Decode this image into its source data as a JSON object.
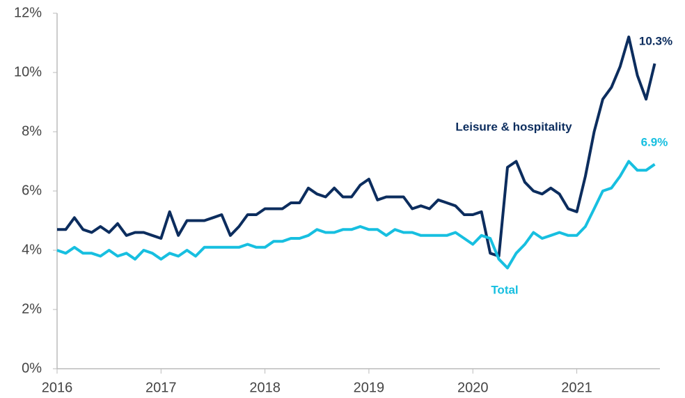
{
  "chart_data": {
    "type": "line",
    "x": [
      2016,
      2016.083,
      2016.167,
      2016.25,
      2016.333,
      2016.417,
      2016.5,
      2016.583,
      2016.667,
      2016.75,
      2016.833,
      2016.917,
      2017,
      2017.083,
      2017.167,
      2017.25,
      2017.333,
      2017.417,
      2017.5,
      2017.583,
      2017.667,
      2017.75,
      2017.833,
      2017.917,
      2018,
      2018.083,
      2018.167,
      2018.25,
      2018.333,
      2018.417,
      2018.5,
      2018.583,
      2018.667,
      2018.75,
      2018.833,
      2018.917,
      2019,
      2019.083,
      2019.167,
      2019.25,
      2019.333,
      2019.417,
      2019.5,
      2019.583,
      2019.667,
      2019.75,
      2019.833,
      2019.917,
      2020,
      2020.083,
      2020.167,
      2020.25,
      2020.333,
      2020.417,
      2020.5,
      2020.583,
      2020.667,
      2020.75,
      2020.833,
      2020.917,
      2021,
      2021.083,
      2021.167,
      2021.25,
      2021.333,
      2021.417,
      2021.5,
      2021.583,
      2021.667,
      2021.75
    ],
    "series": [
      {
        "name": "Leisure & hospitality",
        "color": "#0c2d5e",
        "end_label": "10.3%",
        "values": [
          4.7,
          4.7,
          5.1,
          4.7,
          4.6,
          4.8,
          4.6,
          4.9,
          4.5,
          4.6,
          4.6,
          4.5,
          4.4,
          5.3,
          4.5,
          5.0,
          5.0,
          5.0,
          5.1,
          5.2,
          4.5,
          4.8,
          5.2,
          5.2,
          5.4,
          5.4,
          5.4,
          5.6,
          5.6,
          6.1,
          5.9,
          5.8,
          6.1,
          5.8,
          5.8,
          6.2,
          6.4,
          5.7,
          5.8,
          5.8,
          5.8,
          5.4,
          5.5,
          5.4,
          5.7,
          5.6,
          5.5,
          5.2,
          5.2,
          5.3,
          3.9,
          3.8,
          6.8,
          7.0,
          6.3,
          6.0,
          5.9,
          6.1,
          5.9,
          5.4,
          5.3,
          6.5,
          8.0,
          9.1,
          9.5,
          10.2,
          11.2,
          9.9,
          9.1,
          10.3
        ]
      },
      {
        "name": "Total",
        "color": "#17bfe0",
        "end_label": "6.9%",
        "values": [
          4.0,
          3.9,
          4.1,
          3.9,
          3.9,
          3.8,
          4.0,
          3.8,
          3.9,
          3.7,
          4.0,
          3.9,
          3.7,
          3.9,
          3.8,
          4.0,
          3.8,
          4.1,
          4.1,
          4.1,
          4.1,
          4.1,
          4.2,
          4.1,
          4.1,
          4.3,
          4.3,
          4.4,
          4.4,
          4.5,
          4.7,
          4.6,
          4.6,
          4.7,
          4.7,
          4.8,
          4.7,
          4.7,
          4.5,
          4.7,
          4.6,
          4.6,
          4.5,
          4.5,
          4.5,
          4.5,
          4.6,
          4.4,
          4.2,
          4.5,
          4.4,
          3.7,
          3.4,
          3.9,
          4.2,
          4.6,
          4.4,
          4.5,
          4.6,
          4.5,
          4.5,
          4.8,
          5.4,
          6.0,
          6.1,
          6.5,
          7.0,
          6.7,
          6.7,
          6.9
        ]
      }
    ],
    "xlim": [
      2016,
      2021.8
    ],
    "xticks": [
      2016,
      2017,
      2018,
      2019,
      2020,
      2021
    ],
    "ylim": [
      0,
      12
    ],
    "yticks": [
      {
        "value": 0,
        "label": "0%"
      },
      {
        "value": 2,
        "label": "2%"
      },
      {
        "value": 4,
        "label": "4%"
      },
      {
        "value": 6,
        "label": "6%"
      },
      {
        "value": 8,
        "label": "8%"
      },
      {
        "value": 10,
        "label": "10%"
      },
      {
        "value": 12,
        "label": "12%"
      }
    ],
    "grid": false
  }
}
